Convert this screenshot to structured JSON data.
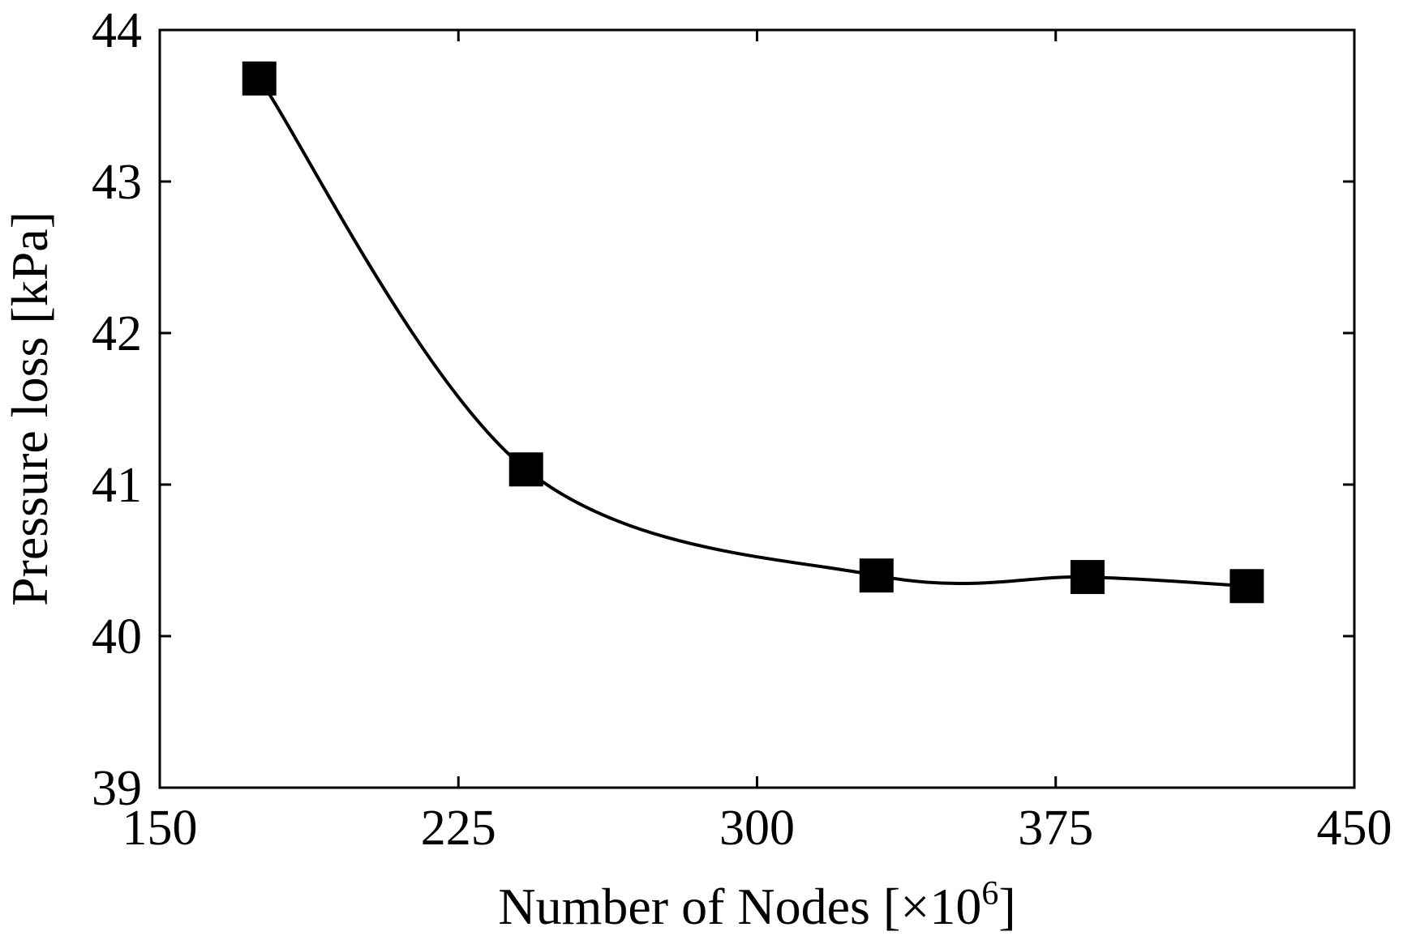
{
  "chart_data": {
    "type": "line",
    "title": "",
    "xlabel": "Number of Nodes [×10",
    "xlabel_superscript": "6",
    "xlabel_suffix": "]",
    "ylabel": "Pressure loss [kPa]",
    "xlim": [
      150,
      450
    ],
    "ylim": [
      39,
      44
    ],
    "xticks": [
      150,
      225,
      300,
      375,
      450
    ],
    "yticks": [
      39,
      40,
      41,
      42,
      43,
      44
    ],
    "xtick_labels": [
      "150",
      "225",
      "300",
      "375",
      "450"
    ],
    "ytick_labels": [
      "39",
      "40",
      "41",
      "42",
      "43",
      "44"
    ],
    "grid": false,
    "legend": "none",
    "marker": "square",
    "line_style": "smooth",
    "color": "#000000",
    "series": [
      {
        "x": [
          175,
          242,
          330,
          383,
          423
        ],
        "y": [
          43.68,
          41.1,
          40.4,
          40.39,
          40.33
        ]
      }
    ]
  }
}
